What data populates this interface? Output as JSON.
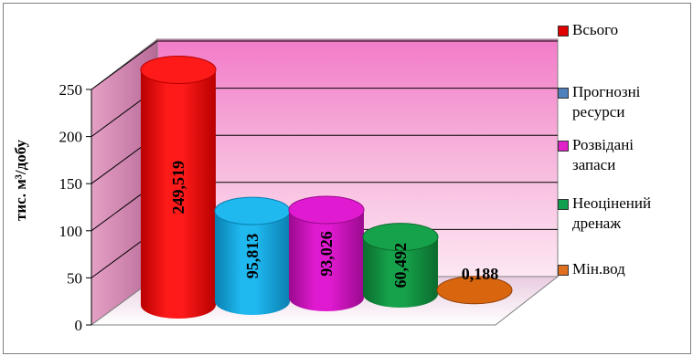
{
  "chart_data": {
    "type": "bar",
    "style": "3d-cylinder",
    "ylabel": "тис. м³/добу",
    "ylim": [
      0,
      250
    ],
    "yticks": [
      "0",
      "50",
      "100",
      "150",
      "200",
      "250"
    ],
    "grid": true,
    "legend_position": "right",
    "series": [
      {
        "name": "Всього",
        "value": 249.519,
        "label": "249,519",
        "color": "#ff1a1a",
        "dark": "#b80000"
      },
      {
        "name": "Прогнозні ресурси",
        "value": 95.813,
        "label": "95,813",
        "color": "#1fb8ef",
        "dark": "#0a7fb0",
        "legend_color": "#4f81bd"
      },
      {
        "name": "Розвідані запаси",
        "value": 93.026,
        "label": "93,026",
        "color": "#e01ad0",
        "dark": "#9a0a8e"
      },
      {
        "name": "Неоцінений дренаж",
        "value": 60.492,
        "label": "60,492",
        "color": "#16a24a",
        "dark": "#0b6b2e"
      },
      {
        "name": "Мін.вод",
        "value": 0.188,
        "label": "0,188",
        "color": "#d9660f",
        "dark": "#8f3e05"
      }
    ]
  },
  "legend": [
    {
      "label": "Всього",
      "color": "#e00000"
    },
    {
      "label": "Прогнозні\nресурси",
      "color": "#4f81bd"
    },
    {
      "label": "Розвідані\nзапаси",
      "color": "#e020c8"
    },
    {
      "label": "Неоцінений\nдренаж",
      "color": "#10a050"
    },
    {
      "label": "Мін.вод",
      "color": "#e07020"
    }
  ]
}
